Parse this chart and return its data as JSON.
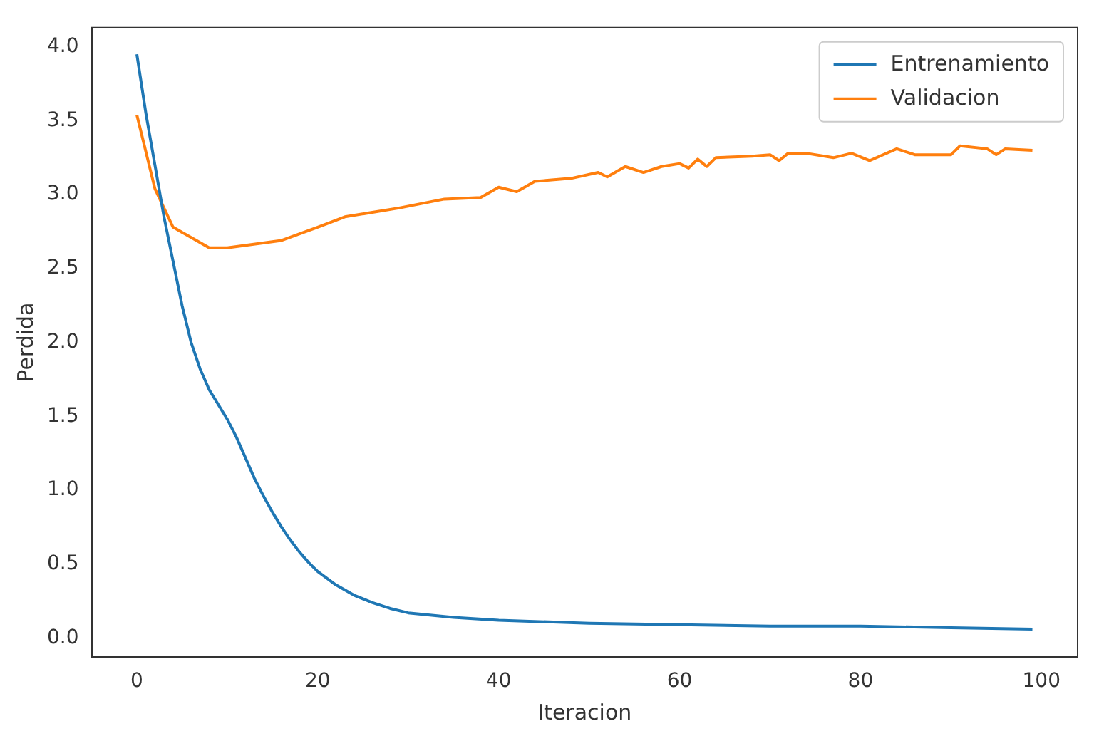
{
  "chart_data": {
    "type": "line",
    "xlabel": "Iteracion",
    "ylabel": "Perdida",
    "xlim": [
      -5,
      104
    ],
    "ylim": [
      -0.13,
      4.13
    ],
    "xticks": [
      0,
      20,
      40,
      60,
      80,
      100
    ],
    "yticks": [
      {
        "value": 0,
        "label": "0.0"
      },
      {
        "value": 0.5,
        "label": "0.5"
      },
      {
        "value": 1,
        "label": "1.0"
      },
      {
        "value": 1.5,
        "label": "1.5"
      },
      {
        "value": 2,
        "label": "2.0"
      },
      {
        "value": 2.5,
        "label": "2.5"
      },
      {
        "value": 3,
        "label": "3.0"
      },
      {
        "value": 3.5,
        "label": "3.5"
      },
      {
        "value": 4,
        "label": "4.0"
      }
    ],
    "grid": false,
    "legend": "top right",
    "marker": "none",
    "line_style": "solid",
    "series": [
      {
        "name": "Entrenamiento",
        "color": "#1f77b4",
        "x": [
          0,
          1,
          2,
          3,
          4,
          5,
          6,
          7,
          8,
          9,
          10,
          11,
          12,
          13,
          14,
          15,
          16,
          17,
          18,
          19,
          20,
          22,
          24,
          26,
          28,
          30,
          35,
          40,
          50,
          60,
          70,
          80,
          90,
          99
        ],
        "values": [
          3.95,
          3.55,
          3.2,
          2.85,
          2.55,
          2.25,
          2.0,
          1.82,
          1.68,
          1.58,
          1.48,
          1.36,
          1.22,
          1.08,
          0.96,
          0.85,
          0.75,
          0.66,
          0.58,
          0.51,
          0.45,
          0.36,
          0.29,
          0.24,
          0.2,
          0.17,
          0.14,
          0.12,
          0.1,
          0.09,
          0.08,
          0.08,
          0.07,
          0.06
        ]
      },
      {
        "name": "Validacion",
        "color": "#ff7f0e",
        "x": [
          0,
          2,
          4,
          6,
          8,
          10,
          16,
          20,
          23,
          29,
          34,
          38,
          40,
          42,
          44,
          48,
          51,
          52,
          54,
          56,
          58,
          60,
          61,
          62,
          63,
          64,
          68,
          70,
          71,
          72,
          74,
          77,
          79,
          81,
          84,
          86,
          90,
          91,
          94,
          95,
          96,
          99
        ],
        "values": [
          3.54,
          3.04,
          2.78,
          2.71,
          2.64,
          2.64,
          2.69,
          2.78,
          2.85,
          2.91,
          2.97,
          2.98,
          3.05,
          3.02,
          3.09,
          3.11,
          3.15,
          3.12,
          3.19,
          3.15,
          3.19,
          3.21,
          3.18,
          3.24,
          3.19,
          3.25,
          3.26,
          3.27,
          3.23,
          3.28,
          3.28,
          3.25,
          3.28,
          3.23,
          3.31,
          3.27,
          3.27,
          3.33,
          3.31,
          3.27,
          3.31,
          3.3
        ]
      }
    ]
  }
}
